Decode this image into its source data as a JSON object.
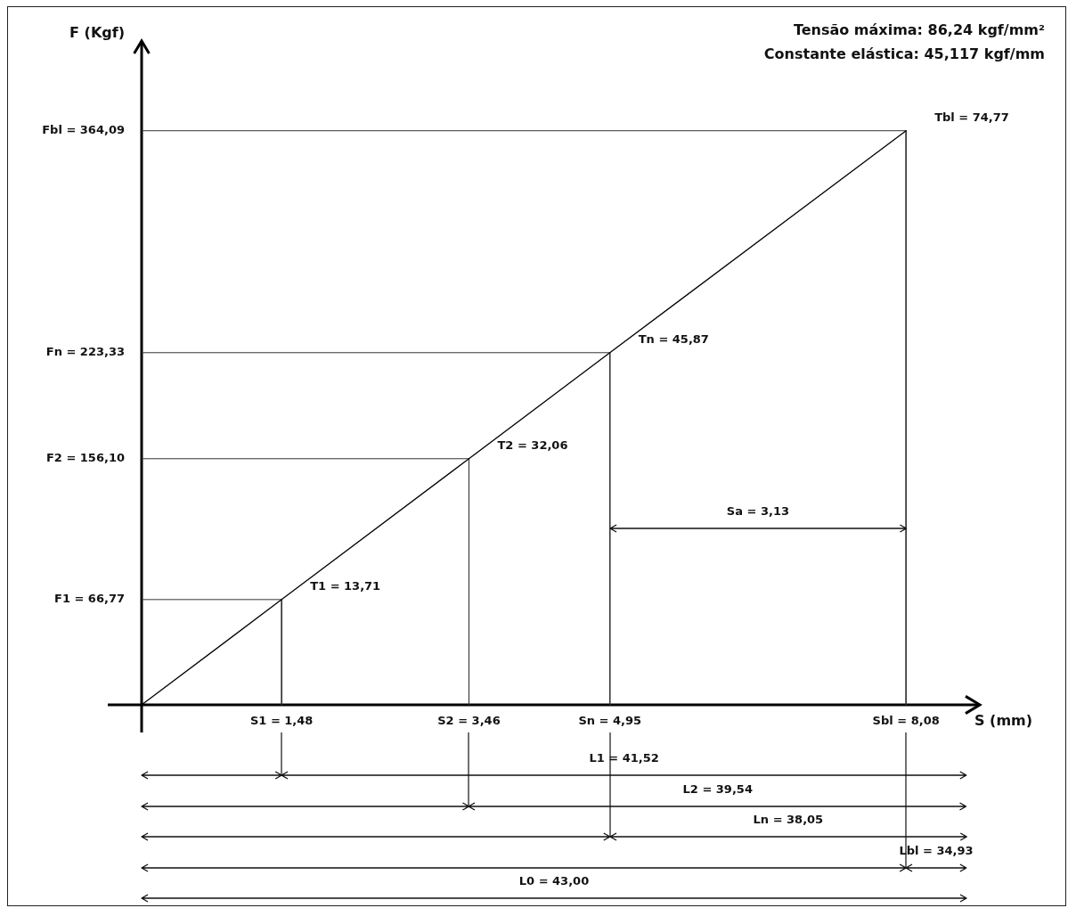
{
  "chart_data": {
    "type": "line",
    "title": "Tensão máxima: 86,24 kgf/mm²",
    "subtitle": "Constante elástica: 45,117 kgf/mm",
    "xlabel": "S (mm)",
    "ylabel": "F (Kgf)",
    "x": [
      0,
      1.48,
      3.46,
      4.95,
      8.08
    ],
    "series": [
      {
        "color": "#000000",
        "values": [
          0,
          66.77,
          156.1,
          223.33,
          364.09
        ]
      },
      {
        "x": [
          0,
          1.48,
          1.48
        ],
        "values": [
          66.77,
          66.77,
          0
        ],
        "color": "#333333"
      },
      {
        "x": [
          0,
          3.46,
          3.46
        ],
        "values": [
          156.1,
          156.1,
          0
        ],
        "color": "#333333"
      },
      {
        "x": [
          0,
          4.95,
          4.95
        ],
        "values": [
          223.33,
          223.33,
          0
        ],
        "color": "#333333"
      },
      {
        "x": [
          0,
          8.08,
          8.08
        ],
        "values": [
          364.09,
          364.09,
          0
        ],
        "color": "#333333"
      }
    ],
    "xlim": [
      0,
      8.86
    ],
    "ylim": [
      0,
      421
    ],
    "xticks": [
      {
        "value": 1.48,
        "label": "S1 = 1,48"
      },
      {
        "value": 3.46,
        "label": "S2 = 3,46"
      },
      {
        "value": 4.95,
        "label": "Sn = 4,95"
      },
      {
        "value": 8.08,
        "label": "Sbl = 8,08"
      }
    ],
    "yticks": [
      {
        "value": 66.77,
        "label": "F1 = 66,77"
      },
      {
        "value": 156.1,
        "label": "F2 = 156,10"
      },
      {
        "value": 223.33,
        "label": "Fn = 223,33"
      },
      {
        "value": 364.09,
        "label": "Fbl = 364,09"
      }
    ],
    "annotations": [
      "Sa = 3,13",
      "L1 = 41,52",
      "L2 = 39,54",
      "Ln = 38,05",
      "Lbl = 34,93",
      "L0 = 43,00",
      {
        "text": "T1 = 13,71",
        "x": 1.48,
        "y": 66.77
      },
      {
        "text": "T2 = 32,06",
        "x": 3.46,
        "y": 156.1
      },
      {
        "text": "Tn = 45,87",
        "x": 4.95,
        "y": 223.33
      },
      {
        "text": "Tbl = 74,77",
        "x": 8.08,
        "y": 364.09
      }
    ]
  }
}
